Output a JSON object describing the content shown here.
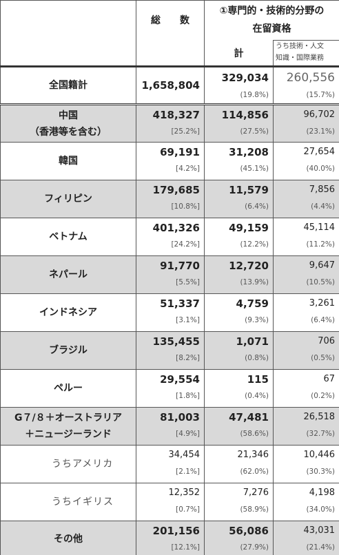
{
  "header": {
    "total": "総　　数",
    "spec_lines": [
      "①専門的・技術的分野の",
      "在留資格"
    ],
    "spec_total": "計",
    "sub_lines": [
      "うち技術・人文",
      "知識・国際業務"
    ]
  },
  "table": {
    "rows": [
      {
        "label": [
          "全国籍計"
        ],
        "total": "1,658,804",
        "total_share": null,
        "spec": "329,034",
        "spec_share": "(19.8%)",
        "sub": "260,556",
        "sub_share": "(15.7%)",
        "background": "#ffffff",
        "bold": true
      },
      {
        "label": [
          "中国",
          "（香港等を含む）"
        ],
        "total": "418,327",
        "total_share": "[25.2%]",
        "spec": "114,856",
        "spec_share": "(27.5%)",
        "sub": "96,702",
        "sub_share": "(23.1%)",
        "background": "#d9d9d9",
        "bold": true
      },
      {
        "label": [
          "韓国"
        ],
        "total": "69,191",
        "total_share": "[4.2%]",
        "spec": "31,208",
        "spec_share": "(45.1%)",
        "sub": "27,654",
        "sub_share": "(40.0%)",
        "background": "#ffffff",
        "bold": true
      },
      {
        "label": [
          "フィリピン"
        ],
        "total": "179,685",
        "total_share": "[10.8%]",
        "spec": "11,579",
        "spec_share": "(6.4%)",
        "sub": "7,856",
        "sub_share": "(4.4%)",
        "background": "#d9d9d9",
        "bold": true
      },
      {
        "label": [
          "ベトナム"
        ],
        "total": "401,326",
        "total_share": "[24.2%]",
        "spec": "49,159",
        "spec_share": "(12.2%)",
        "sub": "45,114",
        "sub_share": "(11.2%)",
        "background": "#ffffff",
        "bold": true
      },
      {
        "label": [
          "ネパール"
        ],
        "total": "91,770",
        "total_share": "[5.5%]",
        "spec": "12,720",
        "spec_share": "(13.9%)",
        "sub": "9,647",
        "sub_share": "(10.5%)",
        "background": "#d9d9d9",
        "bold": true
      },
      {
        "label": [
          "インドネシア"
        ],
        "total": "51,337",
        "total_share": "[3.1%]",
        "spec": "4,759",
        "spec_share": "(9.3%)",
        "sub": "3,261",
        "sub_share": "(6.4%)",
        "background": "#ffffff",
        "bold": true
      },
      {
        "label": [
          "ブラジル"
        ],
        "total": "135,455",
        "total_share": "[8.2%]",
        "spec": "1,071",
        "spec_share": "(0.8%)",
        "sub": "706",
        "sub_share": "(0.5%)",
        "background": "#d9d9d9",
        "bold": true
      },
      {
        "label": [
          "ペルー"
        ],
        "total": "29,554",
        "total_share": "[1.8%]",
        "spec": "115",
        "spec_share": "(0.4%)",
        "sub": "67",
        "sub_share": "(0.2%)",
        "background": "#ffffff",
        "bold": true
      },
      {
        "label": [
          "G７/８＋オーストラリア",
          "＋ニュージーランド"
        ],
        "total": "81,003",
        "total_share": "[4.9%]",
        "spec": "47,481",
        "spec_share": "(58.6%)",
        "sub": "26,518",
        "sub_share": "(32.7%)",
        "background": "#d9d9d9",
        "bold": true
      },
      {
        "label": [
          "うちアメリカ"
        ],
        "total": "34,454",
        "total_share": "[2.1%]",
        "spec": "21,346",
        "spec_share": "(62.0%)",
        "sub": "10,446",
        "sub_share": "(30.3%)",
        "background": "#ffffff",
        "bold": false
      },
      {
        "label": [
          "うちイギリス"
        ],
        "total": "12,352",
        "total_share": "[0.7%]",
        "spec": "7,276",
        "spec_share": "(58.9%)",
        "sub": "4,198",
        "sub_share": "(34.0%)",
        "background": "#ffffff",
        "bold": false
      },
      {
        "label": [
          "その他"
        ],
        "total": "201,156",
        "total_share": "[12.1%]",
        "spec": "56,086",
        "spec_share": "(27.9%)",
        "sub": "43,031",
        "sub_share": "(21.4%)",
        "background": "#d9d9d9",
        "bold": true
      }
    ]
  }
}
